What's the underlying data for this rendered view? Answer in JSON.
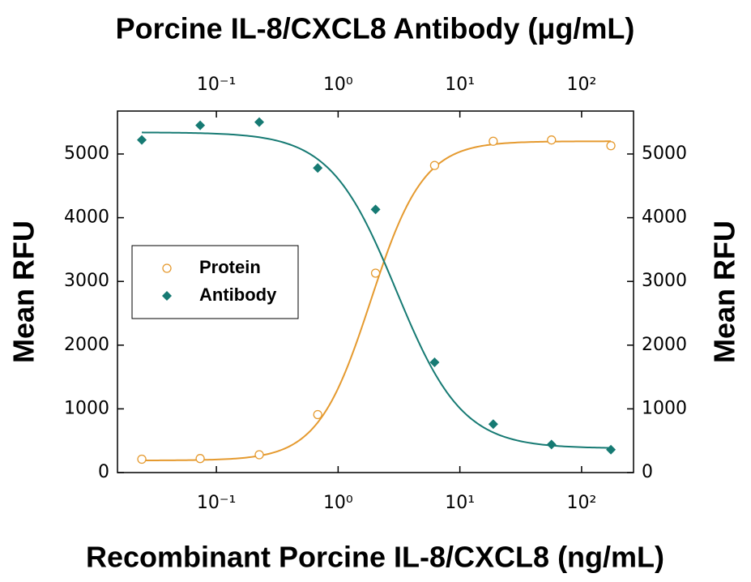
{
  "chart_data": {
    "type": "scatter",
    "title": "Porcine IL-8/CXCL8 Antibody (μg/mL)",
    "x_label": "Recombinant Porcine IL-8/CXCL8 (ng/mL)",
    "y_label": "Mean RFU",
    "y2_label": "Mean RFU",
    "log_x": true,
    "x": [
      0.0244,
      0.0736,
      0.225,
      0.68,
      2.03,
      6.2,
      18.8,
      56.6,
      174
    ],
    "series": [
      {
        "name": "Protein",
        "color": "#e59a2f",
        "marker": "open-circle",
        "values": [
          210,
          220,
          280,
          910,
          3130,
          4820,
          5200,
          5220,
          5130
        ],
        "fit": {
          "a": 190,
          "d": 5200,
          "c": 1.85,
          "b": 2.0
        }
      },
      {
        "name": "Antibody",
        "color": "#167a73",
        "marker": "diamond",
        "values": [
          5220,
          5450,
          5500,
          4780,
          4130,
          1730,
          760,
          440,
          360
        ],
        "fit": {
          "a": 5340,
          "d": 380,
          "c": 3.0,
          "b": 1.6
        }
      }
    ],
    "xlim": [
      0.0154,
      267
    ],
    "xticks": [
      {
        "value": 0.1,
        "label": "10⁻¹"
      },
      {
        "value": 1,
        "label": "10⁰"
      },
      {
        "value": 10,
        "label": "10¹"
      },
      {
        "value": 100,
        "label": "10²"
      }
    ],
    "x2lim": [
      0.0154,
      267
    ],
    "x2ticks": [
      {
        "value": 0.1,
        "label": "10⁻¹"
      },
      {
        "value": 1,
        "label": "10⁰"
      },
      {
        "value": 10,
        "label": "10¹"
      },
      {
        "value": 100,
        "label": "10²"
      }
    ],
    "ylim": [
      0,
      5674
    ],
    "yticks": [
      0,
      1000,
      2000,
      3000,
      4000,
      5000
    ],
    "y2lim": [
      0,
      5674
    ],
    "y2ticks": [
      0,
      1000,
      2000,
      3000,
      4000,
      5000
    ],
    "legend": "center left",
    "grid": false
  }
}
